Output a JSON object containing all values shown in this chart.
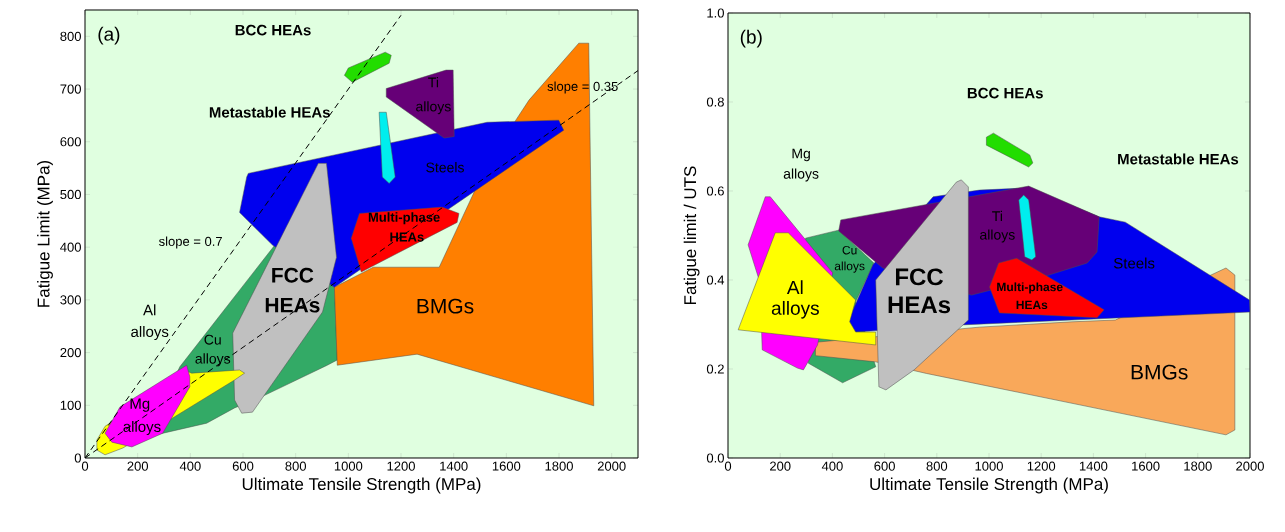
{
  "chart_data": [
    {
      "type": "area",
      "xlabel": "Ultimate Tensile Strength (MPa)",
      "ylabel": "Fatigue Limit (MPa)",
      "xlim": [
        0,
        2100
      ],
      "ylim": [
        0,
        850
      ],
      "xticks": [
        0,
        200,
        400,
        600,
        800,
        1000,
        1200,
        1400,
        1600,
        1800,
        2000
      ],
      "yticks": [
        0,
        100,
        200,
        300,
        400,
        500,
        600,
        700,
        800
      ],
      "series": [
        {
          "color": "#33aa66",
          "x": [
            360,
            727,
            947,
            958,
            920,
            670,
            568,
            462,
            235
          ],
          "values": [
            173,
            408,
            324,
            186,
            176,
            116,
            95,
            66,
            40
          ]
        },
        {
          "color": "#ff7f00",
          "x": [
            947,
            958,
            1261,
            1932,
            1913,
            1875,
            1686,
            1636,
            1481,
            1345,
            1095
          ],
          "values": [
            324,
            176,
            197,
            99,
            787,
            787,
            679,
            641,
            508,
            362,
            362
          ]
        },
        {
          "color": "#0000ee",
          "x": [
            620,
            1527,
            1799,
            1818,
            947,
            712,
            587,
            614
          ],
          "values": [
            540,
            637,
            641,
            622,
            324,
            404,
            466,
            533
          ]
        },
        {
          "color": "#ff0000",
          "x": [
            1011,
            1042,
            1356,
            1420,
            1413,
            1049
          ],
          "values": [
            417,
            464,
            476,
            464,
            447,
            353
          ]
        },
        {
          "color": "#c0c0c0",
          "x": [
            561,
            886,
            917,
            955,
            902,
            636,
            595,
            568
          ],
          "values": [
            237,
            559,
            559,
            381,
            277,
            87,
            85,
            110
          ]
        },
        {
          "color": "#ffff00",
          "x": [
            76,
            45,
            45,
            76,
            386,
            405,
            587,
            606,
            568,
            333,
            144
          ],
          "values": [
            6,
            15,
            34,
            60,
            165,
            161,
            167,
            161,
            148,
            76,
            19
          ]
        },
        {
          "color": "#ff00ff",
          "x": [
            133,
            386,
            398,
            398,
            295,
            178,
            102,
            76
          ],
          "values": [
            97,
            176,
            154,
            135,
            47,
            21,
            30,
            47
          ]
        },
        {
          "color": "#660077",
          "x": [
            1144,
            1371,
            1398,
            1402,
            1364,
            1144
          ],
          "values": [
            701,
            736,
            736,
            610,
            607,
            685
          ]
        },
        {
          "color": "#00eeee",
          "x": [
            1117,
            1144,
            1178,
            1155,
            1129
          ],
          "values": [
            656,
            656,
            533,
            521,
            533
          ]
        },
        {
          "color": "#22dd00",
          "x": [
            985,
            1015,
            1155,
            1163,
            1140,
            1000
          ],
          "values": [
            726,
            713,
            749,
            764,
            770,
            740
          ]
        },
        {
          "type": "line",
          "line_style": "dashed",
          "color": "#000000",
          "x": [
            0,
            1200
          ],
          "values": [
            0,
            840
          ]
        },
        {
          "type": "line",
          "line_style": "dashed",
          "color": "#000000",
          "x": [
            0,
            2100
          ],
          "values": [
            0,
            735
          ]
        }
      ],
      "annotations": [
        "(a)",
        "BCC HEAs",
        "Metastable HEAs",
        "Ti",
        "alloys",
        "Steels",
        "Multi-phase",
        "HEAs",
        "FCC",
        "HEAs",
        "BMGs",
        "Cu",
        "alloys",
        "Al",
        "alloys",
        "Mg",
        "alloys",
        "slope = 0.7",
        "slope = 0.35"
      ]
    },
    {
      "type": "area",
      "xlabel": "Ultimate Tensile Strength (MPa)",
      "ylabel": "Fatigue limit / UTS",
      "xlim": [
        0,
        2000
      ],
      "ylim": [
        0,
        1.0
      ],
      "xticks": [
        0,
        200,
        400,
        600,
        800,
        1000,
        1200,
        1400,
        1600,
        1800,
        2000
      ],
      "yticks": [
        {
          "value": 0,
          "label": "0.0"
        },
        0.2,
        0.4,
        0.6,
        0.8,
        {
          "value": 1,
          "label": "1.0"
        }
      ],
      "series": [
        {
          "color": "#33aa66",
          "x": [
            297,
            424,
            559,
            489,
            566,
            439,
            308
          ],
          "values": [
            0.494,
            0.512,
            0.438,
            0.351,
            0.205,
            0.169,
            0.213
          ]
        },
        {
          "color": "#f9a85a",
          "x": [
            335,
            963,
            1318,
            1484,
            1908,
            1942,
            1942,
            1908,
            760,
            566,
            335
          ],
          "values": [
            0.26,
            0.294,
            0.306,
            0.31,
            0.427,
            0.411,
            0.063,
            0.052,
            0.19,
            0.216,
            0.23
          ]
        },
        {
          "color": "#0000ee",
          "x": [
            489,
            462,
            555,
            786,
            963,
            1152,
            1422,
            1522,
            1998,
            2000,
            894
          ],
          "values": [
            0.283,
            0.31,
            0.434,
            0.587,
            0.602,
            0.607,
            0.542,
            0.53,
            0.355,
            0.328,
            0.299
          ]
        },
        {
          "color": "#660077",
          "x": [
            424,
            593,
            933,
            1229,
            1376,
            1414,
            1422,
            1152,
            925,
            432
          ],
          "values": [
            0.51,
            0.427,
            0.366,
            0.411,
            0.438,
            0.463,
            0.542,
            0.611,
            0.587,
            0.535
          ]
        },
        {
          "color": "#ff0000",
          "x": [
            1037,
            1106,
            1441,
            1414,
            1040,
            1002
          ],
          "values": [
            0.438,
            0.449,
            0.333,
            0.315,
            0.326,
            0.384
          ]
        },
        {
          "color": "#c0c0c0",
          "x": [
            875,
            894,
            921,
            921,
            713,
            605,
            578,
            566
          ],
          "values": [
            0.62,
            0.625,
            0.609,
            0.31,
            0.198,
            0.153,
            0.16,
            0.4
          ]
        },
        {
          "color": "#ff00ff",
          "x": [
            143,
            162,
            401,
            343,
            289,
            266,
            131,
            123,
            77
          ],
          "values": [
            0.587,
            0.587,
            0.416,
            0.254,
            0.198,
            0.202,
            0.243,
            0.393,
            0.479
          ]
        },
        {
          "color": "#ffff00",
          "x": [
            181,
            231,
            489,
            466,
            489,
            566,
            566,
            39,
            46
          ],
          "values": [
            0.506,
            0.506,
            0.355,
            0.306,
            0.283,
            0.283,
            0.254,
            0.288,
            0.299
          ]
        },
        {
          "color": "#00eeee",
          "x": [
            1114,
            1133,
            1152,
            1179,
            1164,
            1137
          ],
          "values": [
            0.58,
            0.591,
            0.58,
            0.452,
            0.445,
            0.452
          ]
        },
        {
          "color": "#22dd00",
          "x": [
            990,
            1017,
            1156,
            1168,
            1152,
            990
          ],
          "values": [
            0.721,
            0.73,
            0.681,
            0.663,
            0.654,
            0.703
          ]
        }
      ],
      "annotations": [
        "(b)",
        "BCC HEAs",
        "Metastable HEAs",
        "Mg",
        "alloys",
        "Cu",
        "alloys",
        "Al",
        "alloys",
        "FCC",
        "HEAs",
        "Ti",
        "alloys",
        "Multi-phase",
        "HEAs",
        "Steels",
        "BMGs"
      ]
    }
  ]
}
